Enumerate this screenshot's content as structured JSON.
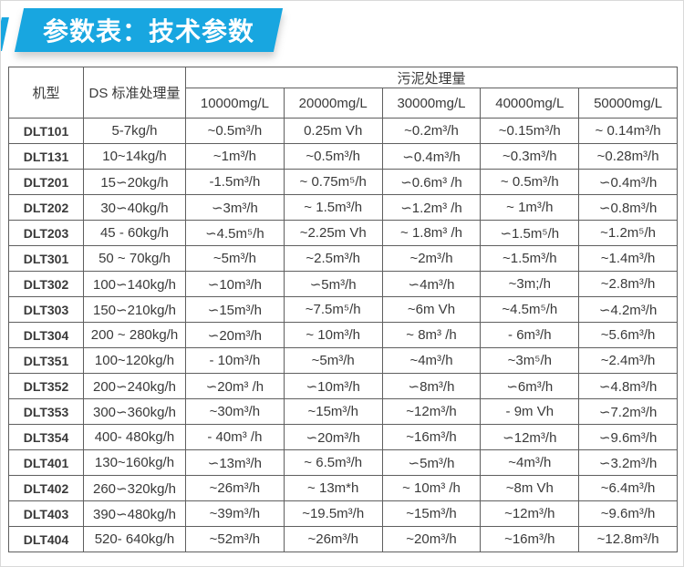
{
  "banner": {
    "title": "参数表：技术参数",
    "accent_color": "#18a6e0"
  },
  "table": {
    "header": {
      "model": "机型",
      "ds_capacity": "DS 标准处理量",
      "sludge_capacity": "污泥处理量",
      "concentrations": [
        "10000mg/L",
        "20000mg/L",
        "30000mg/L",
        "40000mg/L",
        "50000mg/L"
      ]
    },
    "rows": [
      {
        "model": "DLT101",
        "ds": "5-7kg/h",
        "values": [
          "~0.5m³/h",
          "0.25m Vh",
          "~0.2m³/h",
          "~0.15m³/h",
          "~ 0.14m³/h"
        ]
      },
      {
        "model": "DLT131",
        "ds": "10~14kg/h",
        "values": [
          "~1m³/h",
          "~0.5m³/h",
          "∽0.4m³/h",
          "~0.3m³/h",
          "~0.28m³/h"
        ]
      },
      {
        "model": "DLT201",
        "ds": "15∽20kg/h",
        "values": [
          "-1.5m³/h",
          "~ 0.75m⁵/h",
          "∽0.6m³ /h",
          "~ 0.5m³/h",
          "∽0.4m³/h"
        ]
      },
      {
        "model": "DLT202",
        "ds": "30∽40kg/h",
        "values": [
          "∽3m³/h",
          "~ 1.5m³/h",
          "∽1.2m³ /h",
          "~ 1m³/h",
          "∽0.8m³/h"
        ]
      },
      {
        "model": "DLT203",
        "ds": "45 - 60kg/h",
        "values": [
          "∽4.5m⁵/h",
          "~2.25m Vh",
          "~ 1.8m³ /h",
          "∽1.5m⁵/h",
          "~1.2m⁵/h"
        ]
      },
      {
        "model": "DLT301",
        "ds": "50 ~ 70kg/h",
        "values": [
          "~5m³/h",
          "~2.5m³/h",
          "~2m³/h",
          "~1.5m³/h",
          "~1.4m³/h"
        ]
      },
      {
        "model": "DLT302",
        "ds": "100∽140kg/h",
        "values": [
          "∽10m³/h",
          "∽5m³/h",
          "∽4m³/h",
          "~3m;/h",
          "~2.8m³/h"
        ]
      },
      {
        "model": "DLT303",
        "ds": "150∽210kg/h",
        "values": [
          "∽15m³/h",
          "~7.5m⁵/h",
          "~6m Vh",
          "~4.5m⁵/h",
          "∽4.2m³/h"
        ]
      },
      {
        "model": "DLT304",
        "ds": "200 ~ 280kg/h",
        "values": [
          "∽20m³/h",
          "~ 10m³/h",
          "~ 8m³ /h",
          "- 6m³/h",
          "~5.6m³/h"
        ]
      },
      {
        "model": "DLT351",
        "ds": "100~120kg/h",
        "values": [
          "- 10m³/h",
          "~5m³/h",
          "~4m³/h",
          "~3m⁵/h",
          "~2.4m³/h"
        ]
      },
      {
        "model": "DLT352",
        "ds": "200∽240kg/h",
        "values": [
          "∽20m³ /h",
          "∽10m³/h",
          "∽8m³/h",
          "∽6m³/h",
          "∽4.8m³/h"
        ]
      },
      {
        "model": "DLT353",
        "ds": "300∽360kg/h",
        "values": [
          "~30m³/h",
          "~15m³/h",
          "~12m³/h",
          "- 9m Vh",
          "∽7.2m³/h"
        ]
      },
      {
        "model": "DLT354",
        "ds": "400- 480kg/h",
        "values": [
          "- 40m³ /h",
          "∽20m³/h",
          "~16m³/h",
          "∽12m³/h",
          "∽9.6m³/h"
        ]
      },
      {
        "model": "DLT401",
        "ds": "130~160kg/h",
        "values": [
          "∽13m³/h",
          "~ 6.5m³/h",
          "∽5m³/h",
          "~4m³/h",
          "∽3.2m³/h"
        ]
      },
      {
        "model": "DLT402",
        "ds": "260∽320kg/h",
        "values": [
          "~26m³/h",
          "~ 13m*h",
          "~ 10m³ /h",
          "~8m Vh",
          "~6.4m³/h"
        ]
      },
      {
        "model": "DLT403",
        "ds": "390∽480kg/h",
        "values": [
          "~39m³/h",
          "~19.5m³/h",
          "~15m³/h",
          "~12m³/h",
          "~9.6m³/h"
        ]
      },
      {
        "model": "DLT404",
        "ds": "520- 640kg/h",
        "values": [
          "~52m³/h",
          "~26m³/h",
          "~20m³/h",
          "~16m³/h",
          "~12.8m³/h"
        ]
      }
    ]
  }
}
